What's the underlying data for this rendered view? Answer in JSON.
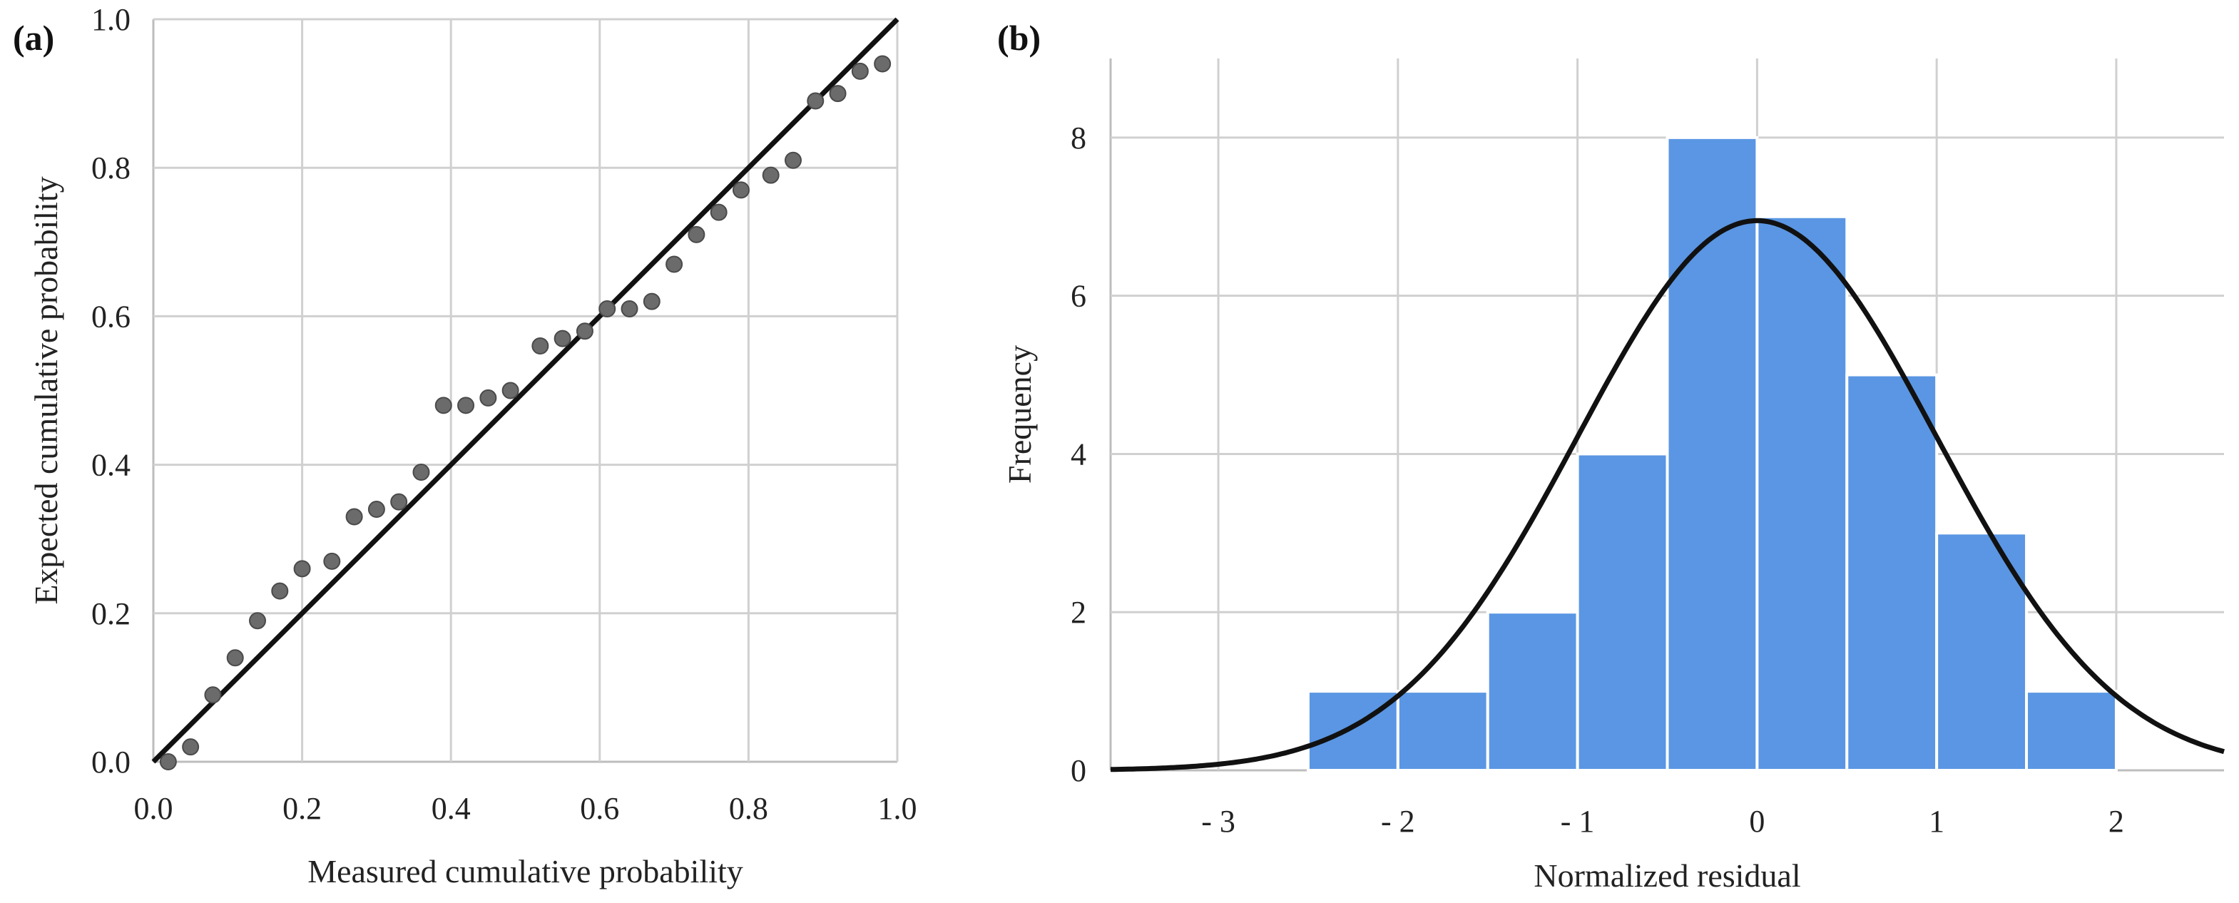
{
  "chart_data": [
    {
      "type": "scatter",
      "panel_label": "(a)",
      "title": "",
      "xlabel": "Measured cumulative probability",
      "ylabel": "Expected cumulative probability",
      "xlim": [
        0,
        1
      ],
      "ylim": [
        0,
        1
      ],
      "xticks": [
        "0.0",
        "0.2",
        "0.4",
        "0.6",
        "0.8",
        "1.0"
      ],
      "yticks": [
        "0.0",
        "0.2",
        "0.4",
        "0.6",
        "0.8",
        "1.0"
      ],
      "grid": true,
      "reference_line": {
        "from": [
          0,
          0
        ],
        "to": [
          1,
          1
        ],
        "color": "#111111"
      },
      "point_color": "#6b6b6b",
      "points": [
        [
          0.02,
          0.0
        ],
        [
          0.05,
          0.02
        ],
        [
          0.08,
          0.09
        ],
        [
          0.11,
          0.14
        ],
        [
          0.14,
          0.19
        ],
        [
          0.17,
          0.23
        ],
        [
          0.2,
          0.26
        ],
        [
          0.24,
          0.27
        ],
        [
          0.27,
          0.33
        ],
        [
          0.3,
          0.34
        ],
        [
          0.33,
          0.35
        ],
        [
          0.36,
          0.39
        ],
        [
          0.39,
          0.48
        ],
        [
          0.42,
          0.48
        ],
        [
          0.45,
          0.49
        ],
        [
          0.48,
          0.5
        ],
        [
          0.52,
          0.56
        ],
        [
          0.55,
          0.57
        ],
        [
          0.58,
          0.58
        ],
        [
          0.61,
          0.61
        ],
        [
          0.64,
          0.61
        ],
        [
          0.67,
          0.62
        ],
        [
          0.7,
          0.67
        ],
        [
          0.73,
          0.71
        ],
        [
          0.76,
          0.74
        ],
        [
          0.79,
          0.77
        ],
        [
          0.83,
          0.79
        ],
        [
          0.86,
          0.81
        ],
        [
          0.89,
          0.89
        ],
        [
          0.92,
          0.9
        ],
        [
          0.95,
          0.93
        ],
        [
          0.98,
          0.94
        ]
      ]
    },
    {
      "type": "bar",
      "panel_label": "(b)",
      "title": "",
      "xlabel": "Normalized residual",
      "ylabel": "Frequency",
      "xlim": [
        -3.6,
        2.6
      ],
      "ylim": [
        0,
        9
      ],
      "xticks": [
        {
          "value": -3,
          "label": "- 3"
        },
        {
          "value": -2,
          "label": "- 2"
        },
        {
          "value": -1,
          "label": "- 1"
        },
        {
          "value": 0,
          "label": "0"
        },
        {
          "value": 1,
          "label": "1"
        },
        {
          "value": 2,
          "label": "2"
        }
      ],
      "yticks": [
        "0",
        "2",
        "4",
        "6",
        "8"
      ],
      "grid": true,
      "bar_color": "#5a96e3",
      "bins": [
        {
          "from": -2.5,
          "to": -2.0,
          "count": 1
        },
        {
          "from": -2.0,
          "to": -1.5,
          "count": 1
        },
        {
          "from": -1.5,
          "to": -1.0,
          "count": 2
        },
        {
          "from": -1.0,
          "to": -0.5,
          "count": 4
        },
        {
          "from": -0.5,
          "to": 0.0,
          "count": 8
        },
        {
          "from": 0.0,
          "to": 0.5,
          "count": 7
        },
        {
          "from": 0.5,
          "to": 1.0,
          "count": 5
        },
        {
          "from": 1.0,
          "to": 1.5,
          "count": 3
        },
        {
          "from": 1.5,
          "to": 2.0,
          "count": 1
        }
      ],
      "normal_curve": {
        "mean": 0.0,
        "sd": 1.0,
        "peak": 6.95,
        "color": "#111111"
      }
    }
  ]
}
